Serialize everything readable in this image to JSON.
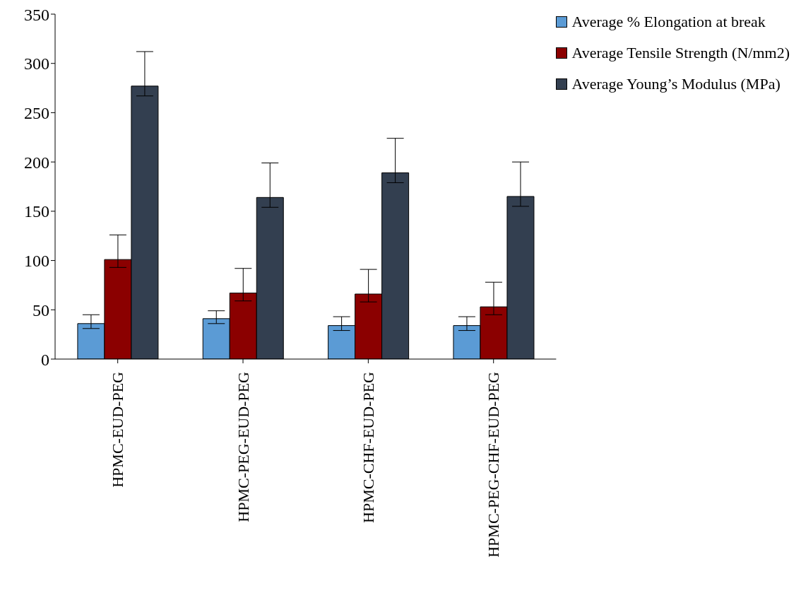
{
  "chart_data": {
    "type": "bar",
    "categories": [
      "HPMC-EUD-PEG",
      "HPMC-PEG-EUD-PEG",
      "HPMC-CHF-EUD-PEG",
      "HPMC-PEG-CHF-EUD-PEG"
    ],
    "series": [
      {
        "name": "Average % Elongation at break",
        "color": "#5b9bd5",
        "values": [
          36,
          41,
          34,
          34
        ],
        "errors": [
          [
            31,
            45
          ],
          [
            36,
            49
          ],
          [
            29,
            43
          ],
          [
            29,
            43
          ]
        ]
      },
      {
        "name": "Average Tensile Strength (N/mm2)",
        "color": "#8b0000",
        "values": [
          101,
          67,
          66,
          53
        ],
        "errors": [
          [
            93,
            126
          ],
          [
            59,
            92
          ],
          [
            58,
            91
          ],
          [
            45,
            78
          ]
        ]
      },
      {
        "name": "Average Young’s Modulus (MPa)",
        "color": "#333f50",
        "values": [
          277,
          164,
          189,
          165
        ],
        "errors": [
          [
            267,
            312
          ],
          [
            154,
            199
          ],
          [
            179,
            224
          ],
          [
            155,
            200
          ]
        ]
      }
    ],
    "ylim": [
      0,
      350
    ],
    "yticks": [
      0,
      50,
      100,
      150,
      200,
      250,
      300,
      350
    ],
    "grid": false,
    "legend": "top right"
  }
}
